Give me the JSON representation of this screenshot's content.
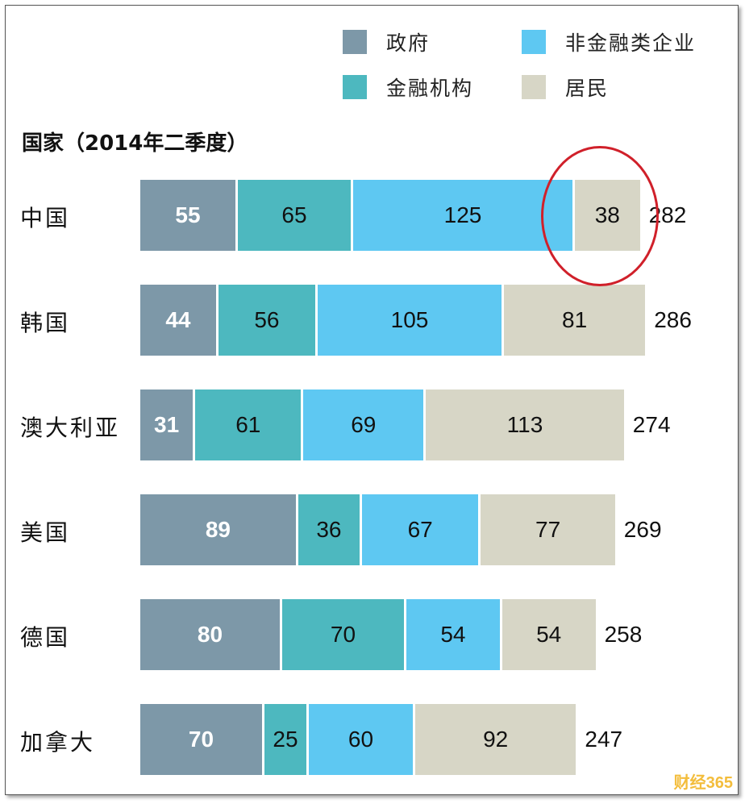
{
  "chart_data": {
    "type": "bar",
    "orientation": "horizontal",
    "stacked": true,
    "title": "国家（2014年二季度）",
    "categories": [
      "中国",
      "韩国",
      "澳大利亚",
      "美国",
      "德国",
      "加拿大"
    ],
    "series": [
      {
        "name": "政府",
        "color": "#7d98a8",
        "values": [
          55,
          44,
          31,
          89,
          80,
          70
        ]
      },
      {
        "name": "金融机构",
        "color": "#4db8bf",
        "values": [
          65,
          56,
          61,
          36,
          70,
          25
        ]
      },
      {
        "name": "非金融类企业",
        "color": "#5ec8f2",
        "values": [
          125,
          105,
          69,
          67,
          54,
          60
        ]
      },
      {
        "name": "居民",
        "color": "#d7d6c6",
        "values": [
          38,
          81,
          113,
          77,
          54,
          92
        ]
      }
    ],
    "totals": [
      282,
      286,
      274,
      269,
      258,
      247
    ],
    "legend_position": "top-right",
    "grid": false,
    "annotation": "red circle around 中国 居民 value"
  },
  "watermark": "财经365"
}
